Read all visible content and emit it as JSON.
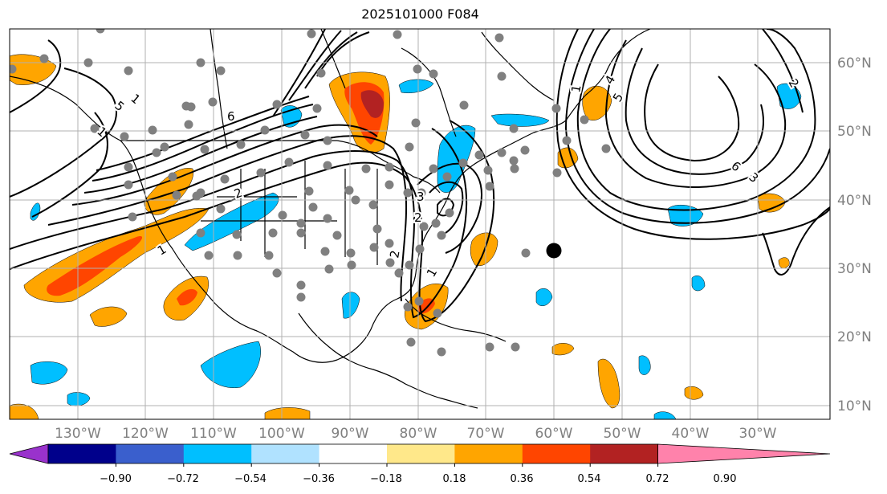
{
  "title": "2025101000 F084",
  "lon_labels": [
    "130°W",
    "120°W",
    "110°W",
    "100°W",
    "90°W",
    "80°W",
    "70°W",
    "60°W",
    "50°W",
    "40°W",
    "30°W"
  ],
  "lat_labels": [
    "60°N",
    "50°N",
    "40°N",
    "30°N",
    "20°N",
    "10°N"
  ],
  "colorbar": {
    "ticks": [
      "−0.90",
      "−0.72",
      "−0.54",
      "−0.36",
      "−0.18",
      "0.18",
      "0.36",
      "0.54",
      "0.72",
      "0.90"
    ],
    "colors": [
      "#9932cc",
      "#00008b",
      "#3a5fcd",
      "#00bfff",
      "#b0e2ff",
      "#ffffff",
      "#ffe88a",
      "#ffa500",
      "#ff4500",
      "#b22222",
      "#ff82ab"
    ]
  },
  "contour_labels": [
    "5",
    "6",
    "2",
    "3",
    "2",
    "1",
    "1",
    "2",
    "1",
    "4",
    "5",
    "6",
    "3",
    "2",
    "1",
    "1"
  ],
  "colors": {
    "contour": "#000000",
    "grid": "#b0b0b0",
    "station": "#808080",
    "marker": "#000000"
  }
}
